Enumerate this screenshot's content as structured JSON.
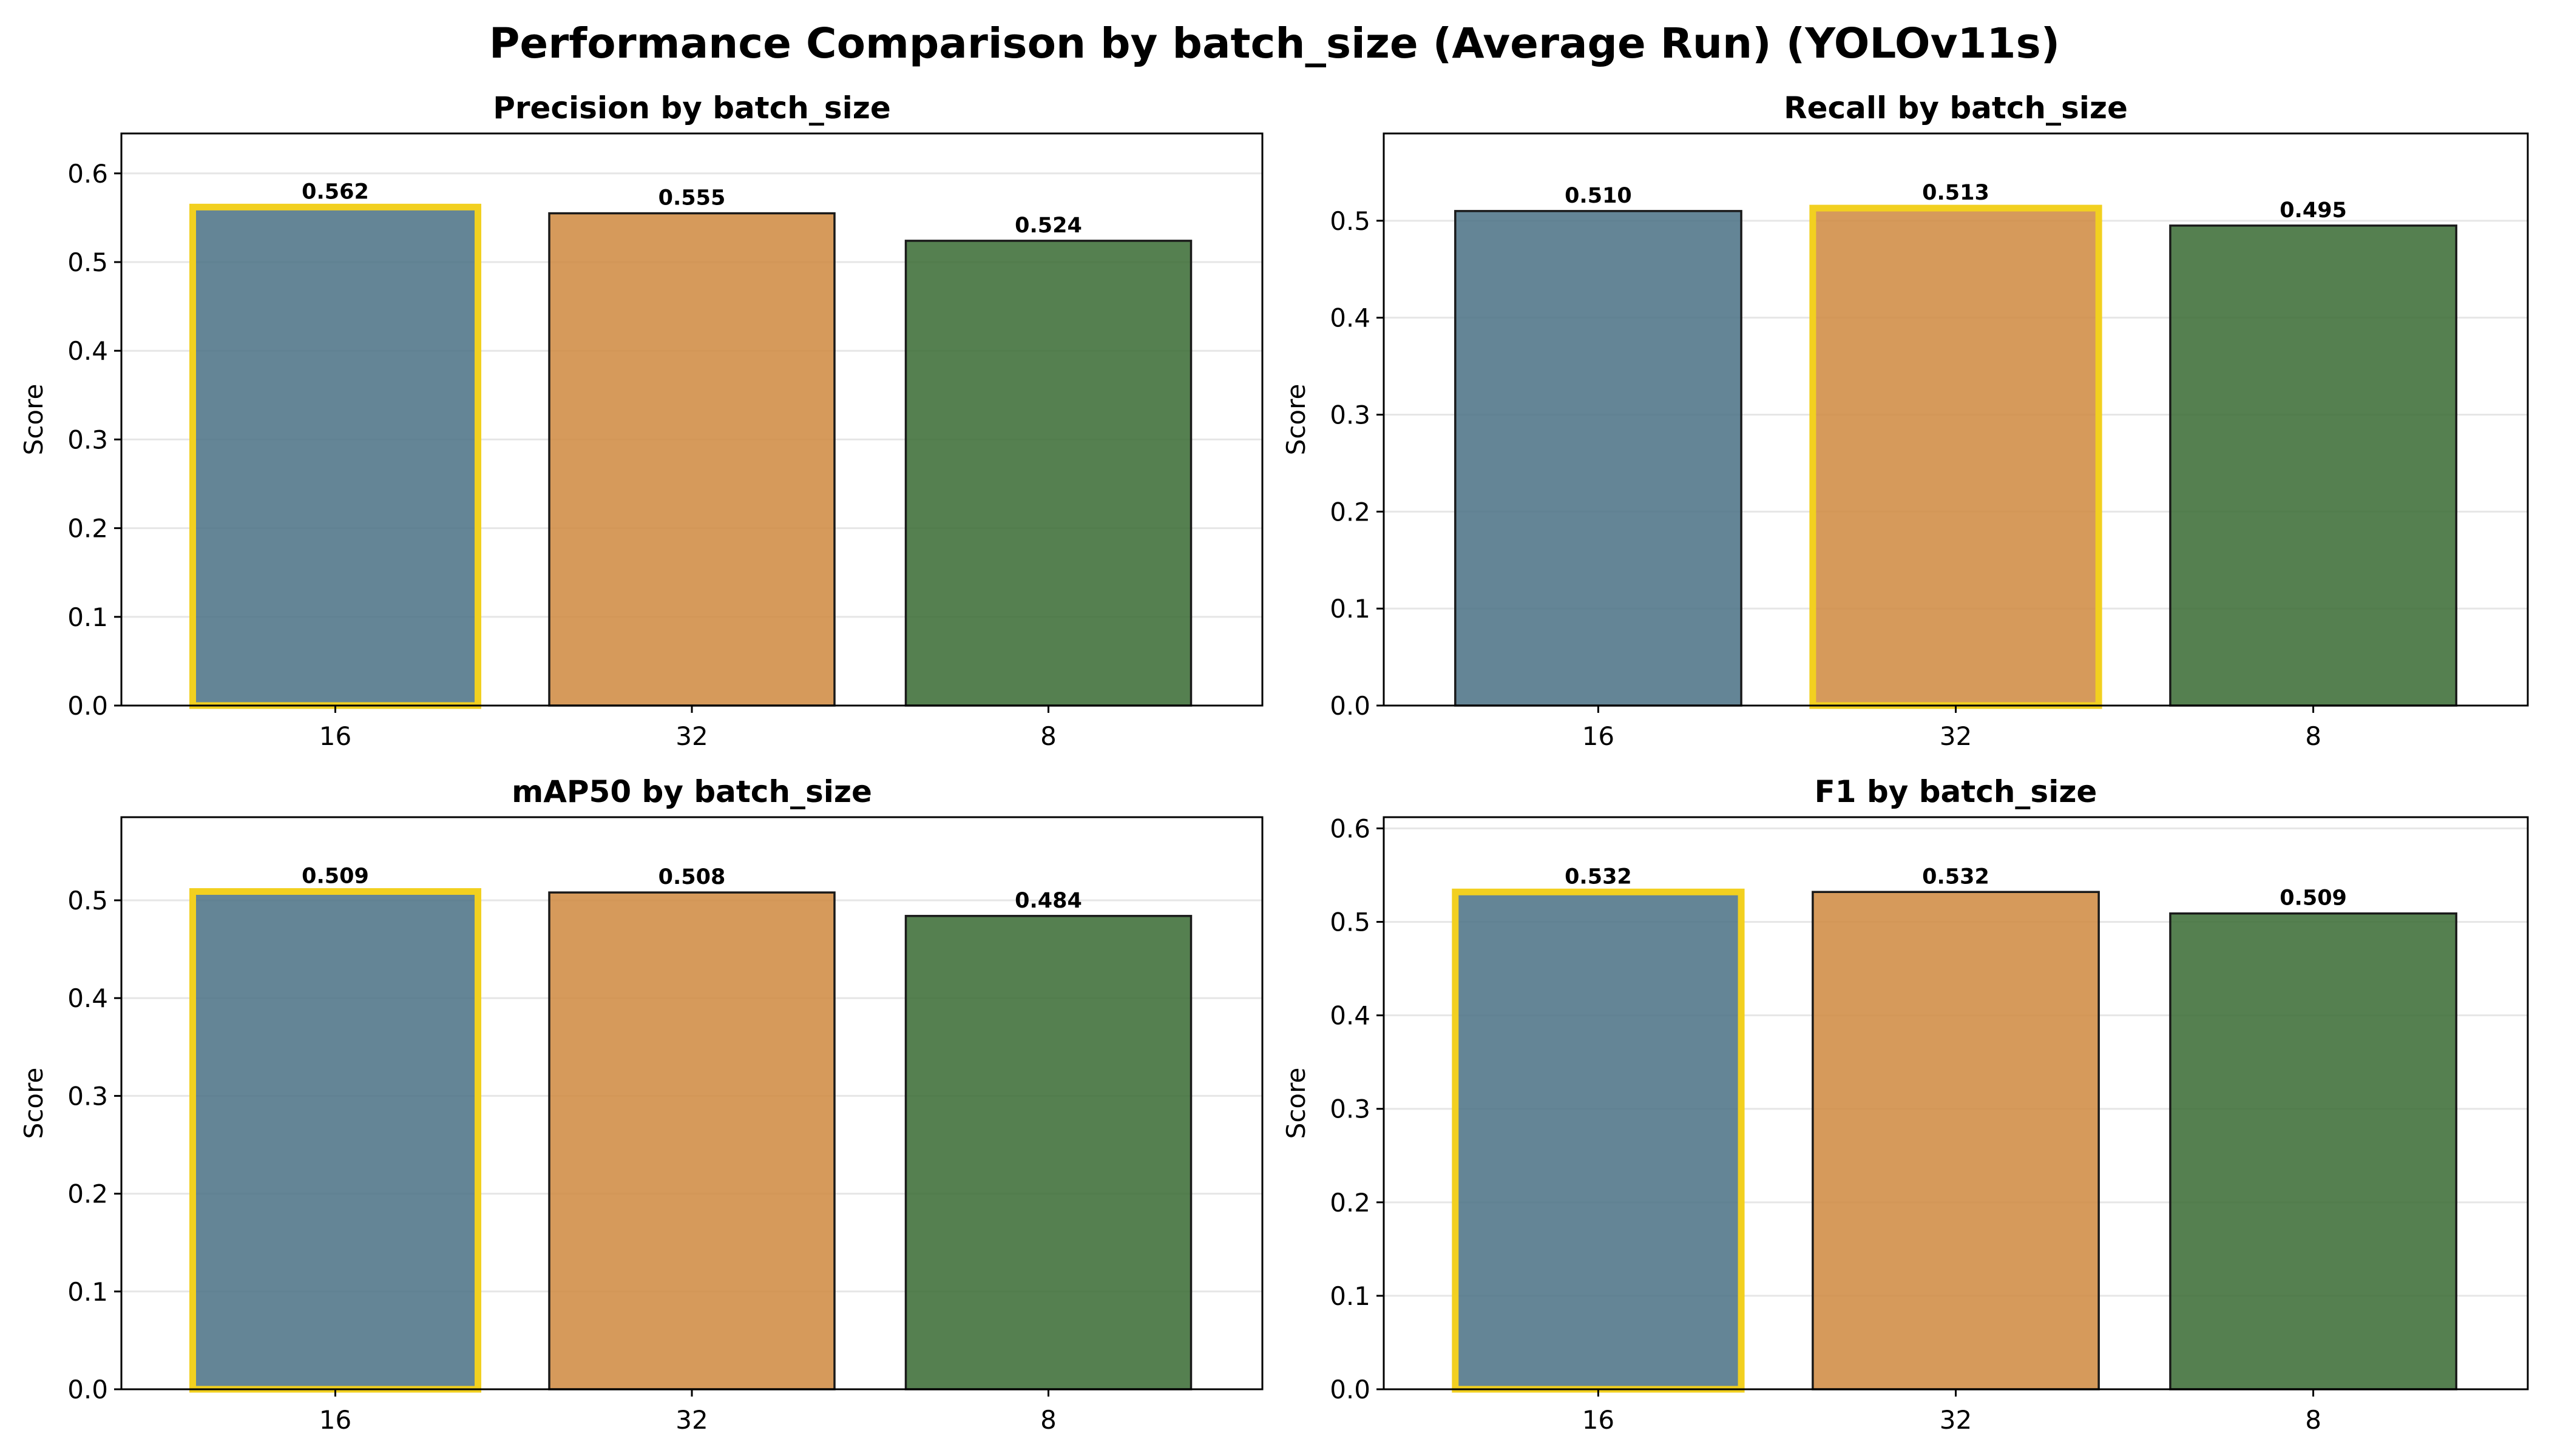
{
  "suptitle": "Performance Comparison by batch_size (Average Run) (YOLOv11s)",
  "colors": {
    "bar_colors": [
      "#4f7487",
      "#d08c44",
      "#3d6e38"
    ],
    "highlight": "#f2d020",
    "edge": "#1a1a1a"
  },
  "chart_data": [
    {
      "type": "bar",
      "title": "Precision by batch_size",
      "ylabel": "Score",
      "categories": [
        "16",
        "32",
        "8"
      ],
      "values": [
        0.562,
        0.555,
        0.524
      ],
      "value_labels": [
        "0.562",
        "0.555",
        "0.524"
      ],
      "ylim": [
        0,
        0.645
      ],
      "yticks": [
        "0.0",
        "0.1",
        "0.2",
        "0.3",
        "0.4",
        "0.5",
        "0.6"
      ],
      "highlight_index": 0,
      "grid": true
    },
    {
      "type": "bar",
      "title": "Recall by batch_size",
      "ylabel": "Score",
      "categories": [
        "16",
        "32",
        "8"
      ],
      "values": [
        0.51,
        0.513,
        0.495
      ],
      "value_labels": [
        "0.510",
        "0.513",
        "0.495"
      ],
      "ylim": [
        0,
        0.59
      ],
      "yticks": [
        "0.0",
        "0.1",
        "0.2",
        "0.3",
        "0.4",
        "0.5"
      ],
      "highlight_index": 1,
      "grid": true
    },
    {
      "type": "bar",
      "title": "mAP50 by batch_size",
      "ylabel": "Score",
      "categories": [
        "16",
        "32",
        "8"
      ],
      "values": [
        0.509,
        0.508,
        0.484
      ],
      "value_labels": [
        "0.509",
        "0.508",
        "0.484"
      ],
      "ylim": [
        0,
        0.585
      ],
      "yticks": [
        "0.0",
        "0.1",
        "0.2",
        "0.3",
        "0.4",
        "0.5"
      ],
      "highlight_index": 0,
      "grid": true
    },
    {
      "type": "bar",
      "title": "F1 by batch_size",
      "ylabel": "Score",
      "categories": [
        "16",
        "32",
        "8"
      ],
      "values": [
        0.532,
        0.532,
        0.509
      ],
      "value_labels": [
        "0.532",
        "0.532",
        "0.509"
      ],
      "ylim": [
        0,
        0.612
      ],
      "yticks": [
        "0.0",
        "0.1",
        "0.2",
        "0.3",
        "0.4",
        "0.5",
        "0.6"
      ],
      "highlight_index": 0,
      "grid": true
    }
  ]
}
